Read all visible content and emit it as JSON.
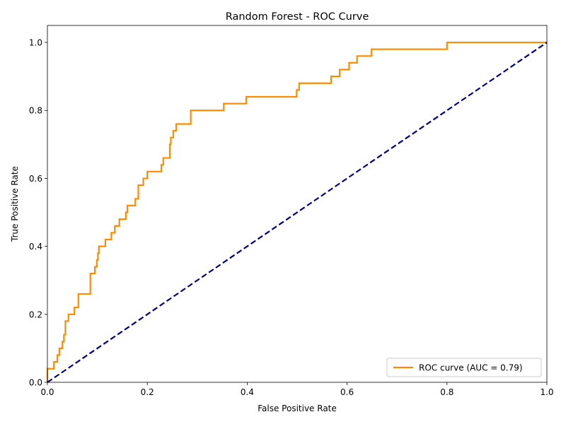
{
  "chart_data": {
    "type": "line",
    "title": "Random Forest - ROC Curve",
    "xlabel": "False Positive Rate",
    "ylabel": "True Positive Rate",
    "xlim": [
      0.0,
      1.0
    ],
    "ylim": [
      0.0,
      1.05
    ],
    "xticks": [
      "0.0",
      "0.2",
      "0.4",
      "0.6",
      "0.8",
      "1.0"
    ],
    "yticks": [
      "0.0",
      "0.2",
      "0.4",
      "0.6",
      "0.8",
      "1.0"
    ],
    "legend_position": "lower-right",
    "grid": false,
    "series": [
      {
        "name": "ROC curve (AUC = 0.79)",
        "color": "#ff8c00",
        "style": "solid",
        "x": [
          0.0,
          0.0,
          0.004,
          0.004,
          0.013,
          0.013,
          0.02,
          0.02,
          0.024,
          0.024,
          0.03,
          0.03,
          0.033,
          0.033,
          0.036,
          0.036,
          0.042,
          0.042,
          0.046,
          0.046,
          0.054,
          0.054,
          0.062,
          0.062,
          0.086,
          0.086,
          0.095,
          0.095,
          0.099,
          0.099,
          0.101,
          0.101,
          0.103,
          0.103,
          0.106,
          0.106,
          0.116,
          0.116,
          0.128,
          0.128,
          0.135,
          0.135,
          0.144,
          0.144,
          0.157,
          0.157,
          0.16,
          0.16,
          0.176,
          0.176,
          0.182,
          0.182,
          0.192,
          0.192,
          0.2,
          0.2,
          0.228,
          0.228,
          0.232,
          0.232,
          0.245,
          0.245,
          0.247,
          0.247,
          0.252,
          0.252,
          0.258,
          0.258,
          0.266,
          0.266,
          0.287,
          0.287,
          0.289,
          0.289,
          0.353,
          0.353,
          0.398,
          0.398,
          0.499,
          0.499,
          0.504,
          0.504,
          0.568,
          0.568,
          0.585,
          0.585,
          0.604,
          0.604,
          0.62,
          0.62,
          0.649,
          0.649,
          0.8,
          0.8,
          1.0
        ],
        "y": [
          0.0,
          0.04,
          0.04,
          0.04,
          0.04,
          0.06,
          0.06,
          0.08,
          0.08,
          0.1,
          0.1,
          0.12,
          0.12,
          0.14,
          0.14,
          0.18,
          0.18,
          0.2,
          0.2,
          0.2,
          0.2,
          0.22,
          0.22,
          0.26,
          0.26,
          0.32,
          0.32,
          0.34,
          0.34,
          0.36,
          0.36,
          0.38,
          0.38,
          0.4,
          0.4,
          0.4,
          0.4,
          0.42,
          0.42,
          0.44,
          0.44,
          0.46,
          0.46,
          0.48,
          0.48,
          0.5,
          0.5,
          0.52,
          0.52,
          0.54,
          0.54,
          0.58,
          0.58,
          0.6,
          0.6,
          0.62,
          0.62,
          0.64,
          0.64,
          0.66,
          0.66,
          0.7,
          0.7,
          0.72,
          0.72,
          0.74,
          0.74,
          0.76,
          0.76,
          0.76,
          0.76,
          0.8,
          0.8,
          0.8,
          0.8,
          0.82,
          0.82,
          0.84,
          0.84,
          0.86,
          0.86,
          0.88,
          0.88,
          0.9,
          0.9,
          0.92,
          0.92,
          0.94,
          0.94,
          0.96,
          0.96,
          0.98,
          0.98,
          1.0,
          1.0
        ]
      },
      {
        "name": "",
        "color": "#000080",
        "style": "dashed",
        "x": [
          0.0,
          1.0
        ],
        "y": [
          0.0,
          1.0
        ]
      }
    ]
  }
}
